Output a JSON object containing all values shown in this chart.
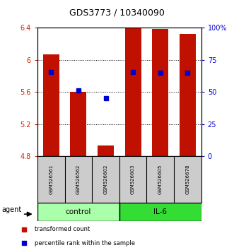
{
  "title": "GDS3773 / 10340090",
  "samples": [
    "GSM526561",
    "GSM526562",
    "GSM526602",
    "GSM526603",
    "GSM526605",
    "GSM526678"
  ],
  "groups": [
    "control",
    "control",
    "control",
    "IL-6",
    "IL-6",
    "IL-6"
  ],
  "bar_bottoms": [
    4.8,
    4.8,
    4.8,
    4.8,
    4.8,
    4.8
  ],
  "bar_tops": [
    6.07,
    5.6,
    4.93,
    6.4,
    6.38,
    6.32
  ],
  "percentile_values": [
    5.85,
    5.62,
    5.52,
    5.85,
    5.84,
    5.84
  ],
  "ylim_left": [
    4.8,
    6.4
  ],
  "yticks_left": [
    4.8,
    5.2,
    5.6,
    6.0,
    6.4
  ],
  "ytick_labels_left": [
    "4.8",
    "5.2",
    "5.6",
    "6",
    "6.4"
  ],
  "ylim_right": [
    0,
    100
  ],
  "yticks_right": [
    0,
    25,
    50,
    75,
    100
  ],
  "ytick_labels_right": [
    "0",
    "25",
    "50",
    "75",
    "100%"
  ],
  "bar_color": "#C01000",
  "percentile_color": "#0000CC",
  "left_tick_color": "#CC2200",
  "right_tick_color": "#0000CC",
  "control_color": "#AAFFAA",
  "il6_color": "#33DD33",
  "legend_items": [
    "transformed count",
    "percentile rank within the sample"
  ],
  "agent_label": "agent",
  "background_plot": "#FFFFFF",
  "bar_width": 0.6,
  "grid_color": "#000000",
  "sample_bg": "#CCCCCC"
}
